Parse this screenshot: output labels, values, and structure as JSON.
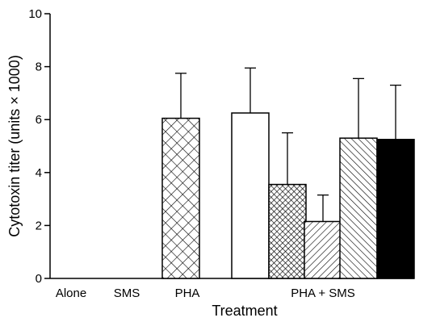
{
  "chart_data": {
    "type": "bar",
    "title": "",
    "xlabel": "Treatment",
    "ylabel": "Cytotoxin titer (units × 1000)",
    "ylim": [
      0,
      10
    ],
    "yticks": [
      "0",
      "2",
      "4",
      "6",
      "8",
      "10"
    ],
    "grid": false,
    "legend": "none",
    "category_labels": [
      "Alone",
      "SMS",
      "PHA",
      "PHA + SMS"
    ],
    "bars": [
      {
        "group": "Alone",
        "value": 0,
        "error": 0,
        "pattern": "none"
      },
      {
        "group": "SMS",
        "value": 0,
        "error": 0,
        "pattern": "none"
      },
      {
        "group": "PHA",
        "value": 6.05,
        "error": 1.7,
        "pattern": "crosshatch"
      },
      {
        "group": "PHA + SMS",
        "value": 6.25,
        "error": 1.7,
        "pattern": "open"
      },
      {
        "group": "PHA + SMS",
        "value": 3.55,
        "error": 1.95,
        "pattern": "dense-crosshatch"
      },
      {
        "group": "PHA + SMS",
        "value": 2.15,
        "error": 1.0,
        "pattern": "diagonal-right"
      },
      {
        "group": "PHA + SMS",
        "value": 5.3,
        "error": 2.25,
        "pattern": "diagonal-left"
      },
      {
        "group": "PHA + SMS",
        "value": 5.25,
        "error": 2.05,
        "pattern": "solid"
      }
    ]
  }
}
